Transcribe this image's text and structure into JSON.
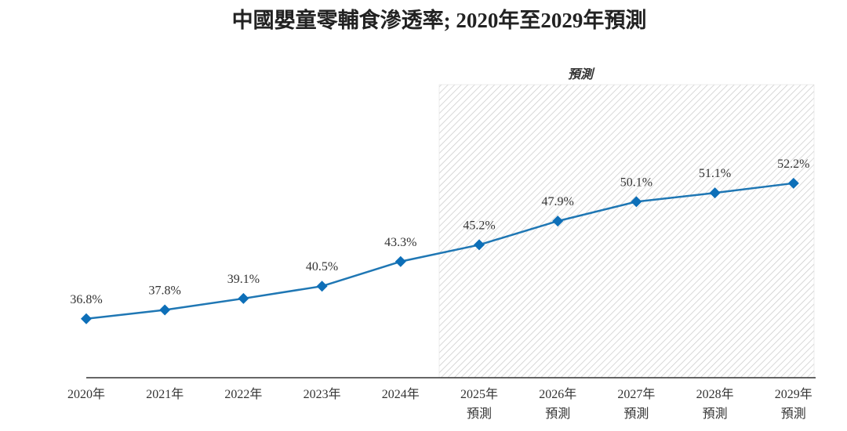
{
  "chart_data": {
    "type": "line",
    "title": "中國嬰童零輔食滲透率; 2020年至2029年預測",
    "forecast_label": "預測",
    "categories": [
      "2020年",
      "2021年",
      "2022年",
      "2023年",
      "2024年",
      "2025年",
      "2026年",
      "2027年",
      "2028年",
      "2029年"
    ],
    "category_sublabels": [
      "",
      "",
      "",
      "",
      "",
      "預測",
      "預測",
      "預測",
      "預測",
      "預測"
    ],
    "values": [
      36.8,
      37.8,
      39.1,
      40.5,
      43.3,
      45.2,
      47.9,
      50.1,
      51.1,
      52.2
    ],
    "data_labels": [
      "36.8%",
      "37.8%",
      "39.1%",
      "40.5%",
      "43.3%",
      "45.2%",
      "47.9%",
      "50.1%",
      "51.1%",
      "52.2%"
    ],
    "unit": "%",
    "forecast_start_index": 5,
    "ylim": [
      30.1,
      52.2
    ],
    "grid": false,
    "legend": "none",
    "colors": {
      "line": "#1f77b4",
      "marker": "#0d6fb8",
      "axis": "#333333",
      "hatch": "#c8c8c8"
    }
  }
}
